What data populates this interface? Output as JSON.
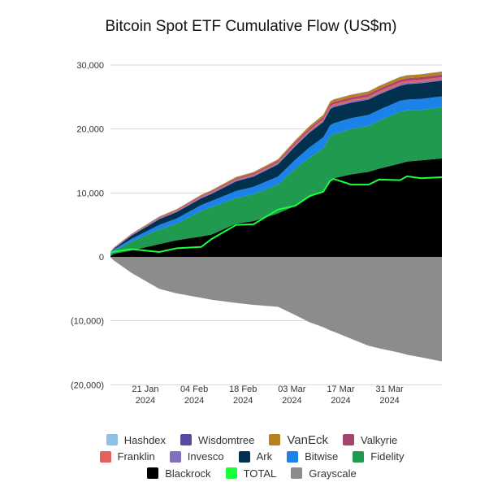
{
  "chart_data": {
    "type": "area",
    "stacked": true,
    "title": "Bitcoin Spot ETF Cumulative Flow (US$m)",
    "xlabel": "",
    "ylabel": "",
    "x": [
      "2024-01-11",
      "2024-01-12",
      "2024-01-17",
      "2024-01-25",
      "2024-01-30",
      "2024-02-06",
      "2024-02-09",
      "2024-02-16",
      "2024-02-21",
      "2024-02-28",
      "2024-03-04",
      "2024-03-08",
      "2024-03-12",
      "2024-03-14",
      "2024-03-15",
      "2024-03-20",
      "2024-03-25",
      "2024-03-28",
      "2024-04-03",
      "2024-04-05",
      "2024-04-09",
      "2024-04-15"
    ],
    "xlim": [
      "2024-01-11",
      "2024-04-15"
    ],
    "x_ticks": [
      {
        "date": "2024-01-21",
        "line1": "21 Jan",
        "line2": "2024"
      },
      {
        "date": "2024-02-04",
        "line1": "04 Feb",
        "line2": "2024"
      },
      {
        "date": "2024-02-18",
        "line1": "18 Feb",
        "line2": "2024"
      },
      {
        "date": "2024-03-03",
        "line1": "03 Mar",
        "line2": "2024"
      },
      {
        "date": "2024-03-17",
        "line1": "17 Mar",
        "line2": "2024"
      },
      {
        "date": "2024-03-31",
        "line1": "31 Mar",
        "line2": "2024"
      }
    ],
    "ylim": [
      -20000,
      30000
    ],
    "y_ticks": [
      {
        "value": 30000,
        "label": "30,000"
      },
      {
        "value": 20000,
        "label": "20,000"
      },
      {
        "value": 10000,
        "label": "10,000"
      },
      {
        "value": 0,
        "label": "0"
      },
      {
        "value": -10000,
        "label": "(10,000)"
      },
      {
        "value": -20000,
        "label": "(20,000)"
      }
    ],
    "grid": true,
    "legend_position": "bottom",
    "series": [
      {
        "name": "Blackrock",
        "color": "#000000",
        "kind": "area",
        "values": [
          111,
          497,
          1000,
          2000,
          2600,
          3200,
          3500,
          5200,
          5600,
          6800,
          8000,
          9300,
          10300,
          12000,
          12300,
          12900,
          13300,
          13800,
          14600,
          14900,
          15100,
          15400
        ]
      },
      {
        "name": "Fidelity",
        "color": "#1f9a4f",
        "kind": "area",
        "values": [
          227,
          422,
          1400,
          2300,
          2600,
          4000,
          4300,
          4000,
          4200,
          4500,
          5800,
          6200,
          6700,
          6900,
          6900,
          7100,
          7200,
          7500,
          8100,
          8000,
          7900,
          8000
        ]
      },
      {
        "name": "Bitwise",
        "color": "#1a82e8",
        "kind": "area",
        "values": [
          238,
          243,
          400,
          700,
          800,
          900,
          950,
          1100,
          1150,
          1250,
          1400,
          1600,
          1700,
          1700,
          1700,
          1700,
          1700,
          1700,
          1700,
          1700,
          1700,
          1700
        ]
      },
      {
        "name": "Ark",
        "color": "#02304f",
        "kind": "area",
        "values": [
          65,
          105,
          500,
          900,
          1000,
          1050,
          1100,
          1500,
          1600,
          1900,
          2100,
          2300,
          2400,
          2500,
          2500,
          2400,
          2400,
          2400,
          2350,
          2400,
          2450,
          2450
        ]
      },
      {
        "name": "Invesco",
        "color": "#8370bb",
        "kind": "area",
        "values": [
          113,
          116,
          130,
          140,
          150,
          160,
          165,
          180,
          185,
          190,
          200,
          210,
          215,
          220,
          222,
          225,
          228,
          232,
          240,
          244,
          247,
          250
        ]
      },
      {
        "name": "Franklin",
        "color": "#e4605e",
        "kind": "area",
        "values": [
          65,
          71,
          76,
          84,
          90,
          100,
          107,
          128,
          137,
          157,
          188,
          211,
          230,
          252,
          255,
          262,
          268,
          277,
          291,
          294,
          296,
          300
        ]
      },
      {
        "name": "Valkyrie",
        "color": "#a3456f",
        "kind": "area",
        "values": [
          11,
          19,
          48,
          86,
          102,
          133,
          143,
          171,
          182,
          210,
          251,
          282,
          306,
          335,
          340,
          350,
          357,
          369,
          388,
          392,
          394,
          400
        ]
      },
      {
        "name": "VanEck",
        "color": "#b8801f",
        "kind": "area",
        "values": [
          10,
          15,
          54,
          96,
          114,
          149,
          161,
          193,
          205,
          236,
          283,
          317,
          345,
          377,
          382,
          394,
          402,
          415,
          437,
          441,
          443,
          450
        ]
      },
      {
        "name": "Wisdomtree",
        "color": "#5b48a0",
        "kind": "area",
        "values": [
          1,
          3,
          4,
          6,
          8,
          10,
          11,
          13,
          14,
          16,
          19,
          21,
          23,
          25,
          25,
          26,
          27,
          28,
          29,
          29,
          30,
          30
        ]
      },
      {
        "name": "Hashdex",
        "color": "#8fc1e3",
        "kind": "area",
        "values": [
          5,
          5,
          5,
          5,
          5,
          6,
          6,
          7,
          7,
          8,
          9,
          11,
          12,
          13,
          13,
          13,
          13,
          14,
          15,
          15,
          15,
          15
        ]
      },
      {
        "name": "Grayscale",
        "color": "#8c8c8c",
        "kind": "area",
        "values": [
          -95,
          -579,
          -2500,
          -5000,
          -5700,
          -6400,
          -6700,
          -7200,
          -7500,
          -7800,
          -9100,
          -10200,
          -11000,
          -11500,
          -11700,
          -12800,
          -13900,
          -14300,
          -15000,
          -15300,
          -15700,
          -16350
        ]
      },
      {
        "name": "TOTAL",
        "color": "#1aff3c",
        "kind": "line",
        "values": [
          655,
          820,
          1200,
          760,
          1350,
          1550,
          2800,
          5000,
          5100,
          7400,
          8000,
          9500,
          10200,
          11900,
          12200,
          11300,
          11300,
          12100,
          12000,
          12600,
          12300,
          12450
        ]
      }
    ],
    "legend_rows": [
      [
        "Hashdex",
        "Wisdomtree",
        "VanEck",
        "Valkyrie"
      ],
      [
        "Franklin",
        "Invesco",
        "Ark",
        "Bitwise",
        "Fidelity"
      ],
      [
        "Blackrock",
        "TOTAL",
        "Grayscale"
      ]
    ]
  }
}
